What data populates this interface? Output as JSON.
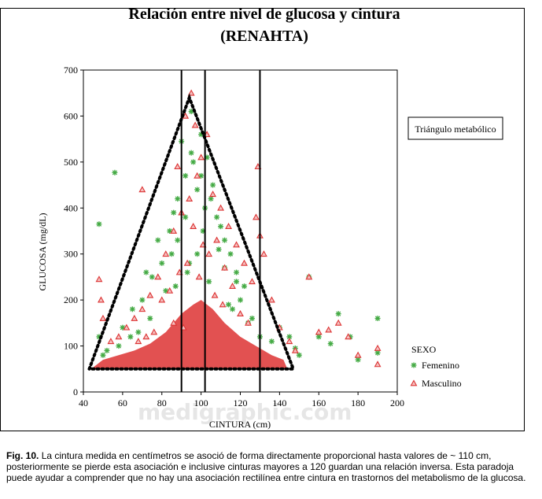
{
  "chart_data": {
    "type": "scatter",
    "title": "Relación entre nivel de glucosa y cintura",
    "subtitle": "(RENAHTA)",
    "xlabel": "CINTURA (cm)",
    "ylabel": "GLUCOSA (mg/dL)",
    "xlim": [
      40,
      200
    ],
    "ylim": [
      0,
      700
    ],
    "x_ticks": [
      "40",
      "60",
      "80",
      "100",
      "120",
      "140",
      "160",
      "180",
      "200"
    ],
    "y_ticks": [
      "0",
      "100",
      "200",
      "300",
      "400",
      "500",
      "600",
      "700"
    ],
    "grid": false,
    "legend": {
      "title": "SEXO",
      "placement": "right",
      "entries": [
        {
          "label": "Femenino",
          "color": "#44aa44",
          "marker": "star"
        },
        {
          "label": "Masculino",
          "color": "#dd3333",
          "marker": "triangle"
        }
      ]
    },
    "vertical_lines_x": [
      90,
      102,
      130
    ],
    "annotation_box": "Triángulo metabólico",
    "triangle_x": [
      43,
      94,
      147
    ],
    "triangle_y": [
      50,
      640,
      50
    ],
    "series": [
      {
        "name": "Femenino",
        "color": "#44aa44",
        "x": [
          48,
          56,
          48,
          75,
          85,
          88,
          92,
          95,
          100,
          103,
          98,
          84,
          80,
          78,
          72,
          70,
          65,
          60,
          105,
          108,
          112,
          115,
          118,
          120,
          110,
          95,
          90,
          100,
          106,
          86,
          82,
          116,
          124,
          130,
          136,
          140,
          145,
          148,
          150,
          155,
          160,
          166,
          170,
          176,
          180,
          190,
          190,
          122,
          126,
          102,
          96,
          92,
          88,
          74,
          68,
          64,
          58,
          52,
          50,
          112,
          118,
          98,
          94,
          101,
          109,
          87,
          93,
          104,
          114
        ],
        "y": [
          365,
          477,
          120,
          250,
          300,
          420,
          470,
          520,
          560,
          510,
          440,
          350,
          280,
          330,
          260,
          200,
          180,
          140,
          420,
          380,
          330,
          300,
          260,
          200,
          360,
          610,
          545,
          470,
          450,
          390,
          220,
          180,
          150,
          120,
          110,
          140,
          120,
          95,
          80,
          250,
          120,
          105,
          170,
          120,
          70,
          160,
          85,
          230,
          160,
          400,
          500,
          380,
          330,
          160,
          130,
          120,
          100,
          90,
          80,
          270,
          240,
          300,
          280,
          350,
          310,
          230,
          260,
          240,
          190
        ]
      },
      {
        "name": "Masculino",
        "color": "#dd3333",
        "x": [
          48,
          49,
          50,
          70,
          88,
          92,
          95,
          97,
          103,
          100,
          98,
          94,
          90,
          86,
          82,
          78,
          74,
          70,
          66,
          62,
          58,
          54,
          106,
          110,
          114,
          118,
          122,
          126,
          129,
          128,
          130,
          132,
          136,
          140,
          145,
          148,
          155,
          160,
          165,
          170,
          175,
          180,
          190,
          190,
          108,
          104,
          112,
          116,
          84,
          80,
          96,
          101,
          93,
          89,
          99,
          107,
          111,
          120,
          124,
          76,
          72,
          68,
          86,
          91
        ],
        "y": [
          245,
          200,
          160,
          440,
          490,
          600,
          650,
          580,
          560,
          510,
          470,
          420,
          390,
          350,
          300,
          250,
          210,
          180,
          160,
          140,
          120,
          110,
          430,
          400,
          360,
          320,
          280,
          240,
          490,
          380,
          340,
          300,
          200,
          140,
          110,
          90,
          250,
          130,
          135,
          150,
          120,
          80,
          95,
          60,
          330,
          300,
          270,
          230,
          220,
          200,
          360,
          320,
          280,
          260,
          250,
          210,
          190,
          170,
          150,
          130,
          120,
          110,
          150,
          140
        ]
      }
    ],
    "density_blob": {
      "color": "#dd3333",
      "x": [
        44,
        50,
        58,
        66,
        74,
        82,
        90,
        96,
        100,
        106,
        112,
        120,
        128,
        136,
        142,
        144,
        44
      ],
      "y": [
        50,
        70,
        80,
        90,
        105,
        130,
        170,
        190,
        200,
        180,
        150,
        120,
        100,
        80,
        70,
        50,
        50
      ]
    }
  },
  "watermark": "medigraphic.com",
  "caption": {
    "label": "Fig. 10.",
    "text": "La cintura medida en centímetros se asoció de forma directamente proporcional hasta valores de ~ 110 cm, posteriormente se pierde esta asociación e inclusive cinturas mayores a 120 guardan una relación inversa. Esta paradoja puede ayudar a comprender que no hay una asociación rectilínea entre cintura en trastornos del metabolismo de la glucosa."
  }
}
